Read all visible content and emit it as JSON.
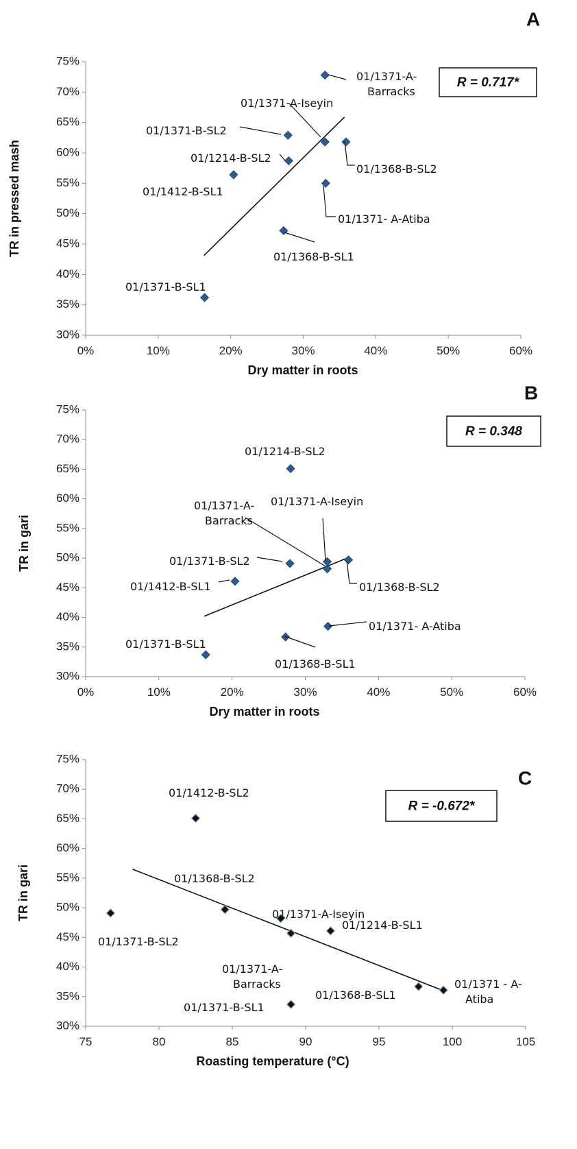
{
  "chart_data": [
    {
      "type": "scatter",
      "panel": "A",
      "xlabel": "Dry matter in roots",
      "ylabel": "TR in pressed mash",
      "xlim": [
        0,
        0.6
      ],
      "ylim": [
        0.3,
        0.75
      ],
      "x_ticks": [
        "0%",
        "10%",
        "20%",
        "30%",
        "40%",
        "50%",
        "60%"
      ],
      "y_ticks": [
        "30%",
        "35%",
        "40%",
        "45%",
        "50%",
        "55%",
        "60%",
        "65%",
        "70%",
        "75%"
      ],
      "annotation": "R = 0.717*",
      "marker": "filled-diamond",
      "marker_color": "#2e5b8f",
      "grid": false,
      "trendline": {
        "x": [
          0.163,
          0.357
        ],
        "y": [
          0.431,
          0.659
        ]
      },
      "points": [
        {
          "name": "01/1371-A-Barracks",
          "lines": [
            "01/1371-A-",
            "Barracks"
          ],
          "x": 0.33,
          "y": 0.728
        },
        {
          "name": "01/1371-A-Iseyin",
          "lines": [
            "01/1371-A-Iseyin"
          ],
          "x": 0.33,
          "y": 0.618
        },
        {
          "name": "01/1371-B-SL2",
          "lines": [
            "01/1371-B-SL2"
          ],
          "x": 0.279,
          "y": 0.629
        },
        {
          "name": "01/1214-B-SL2",
          "lines": [
            "01/1214-B-SL2"
          ],
          "x": 0.28,
          "y": 0.587
        },
        {
          "name": "01/1368-B-SL2",
          "lines": [
            "01/1368-B-SL2"
          ],
          "x": 0.359,
          "y": 0.618
        },
        {
          "name": "01/1412-B-SL1",
          "lines": [
            "01/1412-B-SL1"
          ],
          "x": 0.204,
          "y": 0.564
        },
        {
          "name": "01/1371- A-Atiba",
          "lines": [
            "01/1371- A-Atiba"
          ],
          "x": 0.331,
          "y": 0.55
        },
        {
          "name": "01/1368-B-SL1",
          "lines": [
            "01/1368-B-SL1"
          ],
          "x": 0.273,
          "y": 0.472
        },
        {
          "name": "01/1371-B-SL1",
          "lines": [
            "01/1371-B-SL1"
          ],
          "x": 0.164,
          "y": 0.362
        }
      ]
    },
    {
      "type": "scatter",
      "panel": "B",
      "xlabel": "Dry matter in roots",
      "ylabel": "TR in gari",
      "xlim": [
        0,
        0.6
      ],
      "ylim": [
        0.3,
        0.75
      ],
      "x_ticks": [
        "0%",
        "10%",
        "20%",
        "30%",
        "40%",
        "50%",
        "60%"
      ],
      "y_ticks": [
        "30%",
        "35%",
        "40%",
        "45%",
        "50%",
        "55%",
        "60%",
        "65%",
        "70%",
        "75%"
      ],
      "annotation": "R = 0.348",
      "marker": "filled-diamond",
      "marker_color": "#2e5b8f",
      "grid": false,
      "trendline": {
        "x": [
          0.162,
          0.357
        ],
        "y": [
          0.402,
          0.5
        ]
      },
      "points": [
        {
          "name": "01/1214-B-SL2",
          "lines": [
            "01/1214-B-SL2"
          ],
          "x": 0.28,
          "y": 0.651
        },
        {
          "name": "01/1371-A-Barracks",
          "lines": [
            "01/1371-A-",
            "Barracks"
          ],
          "x": 0.33,
          "y": 0.482
        },
        {
          "name": "01/1371-A-Iseyin",
          "lines": [
            "01/1371-A-Iseyin"
          ],
          "x": 0.33,
          "y": 0.494
        },
        {
          "name": "01/1371-B-SL2",
          "lines": [
            "01/1371-B-SL2"
          ],
          "x": 0.279,
          "y": 0.491
        },
        {
          "name": "01/1368-B-SL2",
          "lines": [
            "01/1368-B-SL2"
          ],
          "x": 0.359,
          "y": 0.497
        },
        {
          "name": "01/1412-B-SL1",
          "lines": [
            "01/1412-B-SL1"
          ],
          "x": 0.204,
          "y": 0.461
        },
        {
          "name": "01/1371- A-Atiba",
          "lines": [
            "01/1371- A-Atiba"
          ],
          "x": 0.331,
          "y": 0.385
        },
        {
          "name": "01/1368-B-SL1",
          "lines": [
            "01/1368-B-SL1"
          ],
          "x": 0.273,
          "y": 0.367
        },
        {
          "name": "01/1371-B-SL1",
          "lines": [
            "01/1371-B-SL1"
          ],
          "x": 0.164,
          "y": 0.337
        }
      ]
    },
    {
      "type": "scatter",
      "panel": "C",
      "xlabel": "Roasting temperature (°C)",
      "ylabel": "TR in gari",
      "xlim": [
        75,
        105
      ],
      "ylim": [
        0.3,
        0.75
      ],
      "x_ticks": [
        "75",
        "80",
        "85",
        "90",
        "95",
        "100",
        "105"
      ],
      "y_ticks": [
        "30%",
        "35%",
        "40%",
        "45%",
        "50%",
        "55%",
        "60%",
        "65%",
        "70%",
        "75%"
      ],
      "annotation": "R = -0.672*",
      "marker": "black-diamond",
      "marker_color": "#111111",
      "grid": false,
      "trendline": {
        "x": [
          78.2,
          99.4
        ],
        "y": [
          0.565,
          0.36
        ]
      },
      "points": [
        {
          "name": "01/1412-B-SL2",
          "lines": [
            "01/1412-B-SL2"
          ],
          "x": 82.5,
          "y": 0.651
        },
        {
          "name": "01/1368-B-SL2",
          "lines": [
            "01/1368-B-SL2"
          ],
          "x": 84.5,
          "y": 0.497
        },
        {
          "name": "01/1371-B-SL2",
          "lines": [
            "01/1371-B-SL2"
          ],
          "x": 76.7,
          "y": 0.491
        },
        {
          "name": "01/1371-A-Iseyin",
          "lines": [
            "01/1371-A-Iseyin"
          ],
          "x": 88.3,
          "y": 0.482
        },
        {
          "name": "01/1214-B-SL1",
          "lines": [
            "01/1214-B-SL1"
          ],
          "x": 91.7,
          "y": 0.461
        },
        {
          "name": "01/1371-A-Barracks",
          "lines": [
            "01/1371-A-",
            "Barracks"
          ],
          "x": 89.0,
          "y": 0.457
        },
        {
          "name": "01/1368-B-SL1",
          "lines": [
            "01/1368-B-SL1"
          ],
          "x": 97.7,
          "y": 0.367
        },
        {
          "name": "01/1371 - A-Atiba",
          "lines": [
            "01/1371 - A-",
            "Atiba"
          ],
          "x": 99.4,
          "y": 0.361
        },
        {
          "name": "01/1371-B-SL1",
          "lines": [
            "01/1371-B-SL1"
          ],
          "x": 89.0,
          "y": 0.337
        }
      ]
    }
  ]
}
